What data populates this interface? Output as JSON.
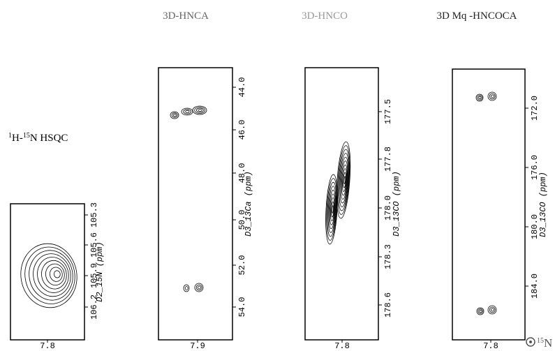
{
  "panels": [
    {
      "title": {
        "sup1": "1",
        "h": "H-",
        "sup2": "15",
        "rest": "N HSQC"
      },
      "yticks": [
        "105.3",
        "105.6",
        "105.9",
        "106.2"
      ],
      "ylabel": "D2_15N (ppm)",
      "xtick": "7.8"
    },
    {
      "title": "3D-HNCA",
      "yticks": [
        "44.0",
        "46.0",
        "48.0",
        "50.0",
        "52.0",
        "54.0"
      ],
      "ylabel": "D3_13Ca (ppm)",
      "xtick": "7.9"
    },
    {
      "title": "3D-HNCO",
      "yticks": [
        "177.5",
        "177.8",
        "178.0",
        "178.3",
        "178.6"
      ],
      "ylabel": "D3_13CO (ppm)",
      "xtick": "7.8"
    },
    {
      "title": "3D Mq -HNCOCA",
      "yticks": [
        "172.0",
        "176.0",
        "180.0",
        "184.0"
      ],
      "ylabel": "D3_13CO (ppm)",
      "xtick": "7.8"
    }
  ],
  "corner": {
    "sup": "15",
    "text": "N"
  }
}
